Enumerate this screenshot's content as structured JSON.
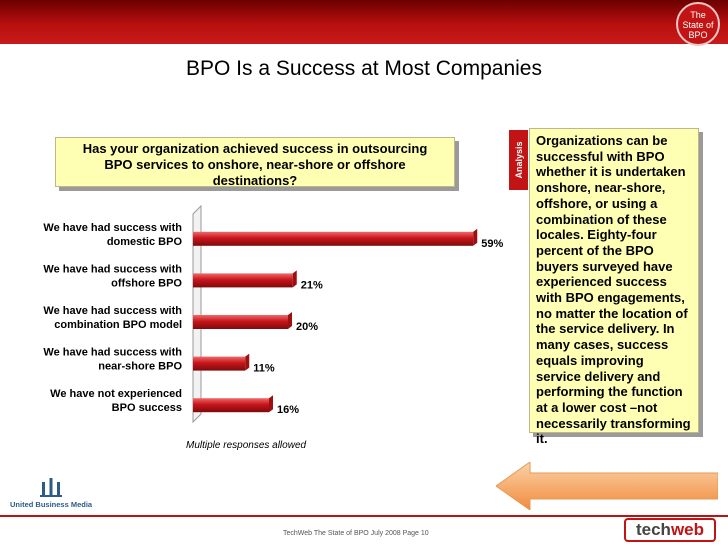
{
  "header": {
    "badge_lines": [
      "The",
      "State of",
      "BPO"
    ]
  },
  "title": "BPO Is a Success at Most Companies",
  "question": "Has your organization achieved success in outsourcing BPO services to onshore, near-shore or offshore destinations?",
  "analysis": {
    "tab_label": "Analysis",
    "text": "Organizations can be successful with BPO whether it is undertaken onshore, near-shore, offshore, or using a combination of these locales. Eighty-four percent of the BPO buyers surveyed have experienced success with BPO engagements, no matter the location of the service delivery.  In many cases, success equals improving service delivery and performing the function at a lower cost –not necessarily transforming it."
  },
  "chart_data": {
    "type": "bar",
    "orientation": "horizontal",
    "categories": [
      "We have had success with domestic BPO",
      "We have had success with offshore BPO",
      "We have had success with combination BPO model",
      "We have had success with near-shore BPO",
      "We have not experienced BPO success"
    ],
    "category_lines": [
      [
        "We have had success with",
        "domestic BPO"
      ],
      [
        "We have had success with",
        "offshore BPO"
      ],
      [
        "We have had success with",
        "combination BPO model"
      ],
      [
        "We have had success with",
        "near-shore BPO"
      ],
      [
        "We have not experienced",
        "BPO success"
      ]
    ],
    "values": [
      59,
      21,
      20,
      11,
      16
    ],
    "value_labels": [
      "59%",
      "21%",
      "20%",
      "11%",
      "16%"
    ],
    "xlim": [
      0,
      60
    ],
    "bar_color": "#c8151b",
    "grid": false,
    "legend": "none"
  },
  "footnote": "Multiple responses allowed",
  "footer": {
    "center_text": "TechWeb The State of BPO    July 2008   Page 10",
    "left_logo_text": "United Business Media",
    "right_logo_part1": "tech",
    "right_logo_part2": "web"
  },
  "colors": {
    "accent_red": "#c21414",
    "callout_yellow": "#ffffb4",
    "arrow_orange": "#f6a35a"
  }
}
